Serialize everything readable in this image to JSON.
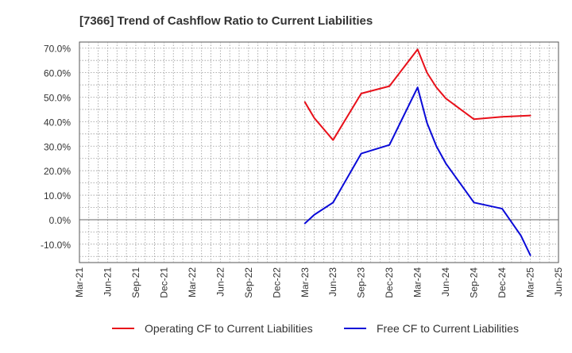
{
  "chart_data": {
    "type": "line",
    "title": "[7366]  Trend of Cashflow Ratio to Current Liabilities",
    "xlabel": "",
    "ylabel": "",
    "x_ticks": [
      "Mar-21",
      "Jun-21",
      "Sep-21",
      "Dec-21",
      "Mar-22",
      "Jun-22",
      "Sep-22",
      "Dec-22",
      "Mar-23",
      "Jun-23",
      "Sep-23",
      "Dec-23",
      "Mar-24",
      "Jun-24",
      "Sep-24",
      "Dec-24",
      "Mar-25",
      "Jun-25"
    ],
    "y_ticks": [
      "70.0%",
      "60.0%",
      "50.0%",
      "40.0%",
      "30.0%",
      "20.0%",
      "10.0%",
      "0.0%",
      "-10.0%"
    ],
    "y_tick_values": [
      70,
      60,
      50,
      40,
      30,
      20,
      10,
      0,
      -10
    ],
    "ylim": [
      -17.5,
      72.5
    ],
    "grid": true,
    "legend_position": "bottom",
    "series": [
      {
        "name": "Operating CF to Current Liabilities",
        "color": "#e8101a",
        "points": [
          {
            "x": "Mar-23",
            "y": 48.0
          },
          {
            "x": "Apr-23",
            "y": 41.5
          },
          {
            "x": "Jun-23",
            "y": 32.5
          },
          {
            "x": "Sep-23",
            "y": 51.5
          },
          {
            "x": "Dec-23",
            "y": 54.5
          },
          {
            "x": "Mar-24",
            "y": 69.5
          },
          {
            "x": "Apr-24",
            "y": 60.0
          },
          {
            "x": "May-24",
            "y": 54.0
          },
          {
            "x": "Jun-24",
            "y": 49.5
          },
          {
            "x": "Sep-24",
            "y": 41.0
          },
          {
            "x": "Dec-24",
            "y": 42.0
          },
          {
            "x": "Mar-25",
            "y": 42.5
          }
        ]
      },
      {
        "name": "Free CF to Current Liabilities",
        "color": "#0a0ad8",
        "points": [
          {
            "x": "Mar-23",
            "y": -1.5
          },
          {
            "x": "Apr-23",
            "y": 2.0
          },
          {
            "x": "Jun-23",
            "y": 7.0
          },
          {
            "x": "Sep-23",
            "y": 27.0
          },
          {
            "x": "Dec-23",
            "y": 30.5
          },
          {
            "x": "Mar-24",
            "y": 54.0
          },
          {
            "x": "Apr-24",
            "y": 39.5
          },
          {
            "x": "May-24",
            "y": 30.0
          },
          {
            "x": "Jun-24",
            "y": 23.0
          },
          {
            "x": "Sep-24",
            "y": 7.0
          },
          {
            "x": "Dec-24",
            "y": 4.5
          },
          {
            "x": "Feb-25",
            "y": -6.5
          },
          {
            "x": "Mar-25",
            "y": -14.5
          }
        ]
      }
    ]
  }
}
